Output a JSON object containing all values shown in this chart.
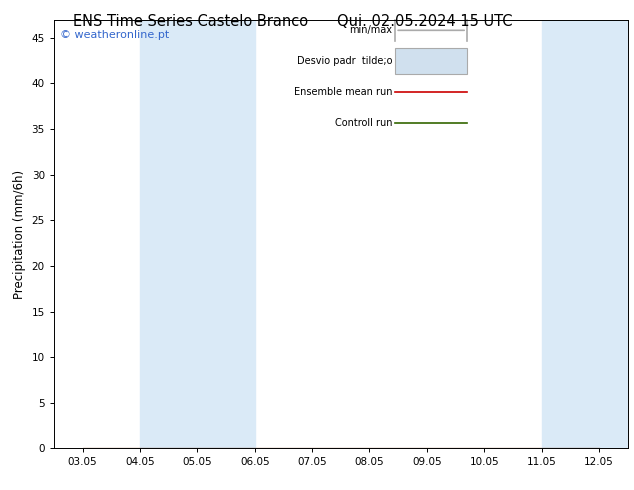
{
  "title": "ENS Time Series Castelo Branco",
  "title_right": "Qui. 02.05.2024 15 UTC",
  "ylabel": "Precipitation (mm/6h)",
  "ylim": [
    0,
    47
  ],
  "yticks": [
    0,
    5,
    10,
    15,
    20,
    25,
    30,
    35,
    40,
    45
  ],
  "xtick_labels": [
    "03.05",
    "04.05",
    "05.05",
    "06.05",
    "07.05",
    "08.05",
    "09.05",
    "10.05",
    "11.05",
    "12.05"
  ],
  "n_ticks": 10,
  "shaded_bands": [
    {
      "xmin": 1.0,
      "xmax": 3.0,
      "color": "#daeaf7"
    },
    {
      "xmin": 8.0,
      "xmax": 9.5,
      "color": "#daeaf7"
    },
    {
      "xmin": 9.5,
      "xmax": 9.9,
      "color": "#daeaf7"
    }
  ],
  "copyright_text": "© weatheronline.pt",
  "copyright_color": "#3366cc",
  "background_color": "#ffffff",
  "plot_bg_color": "#ffffff",
  "legend_entries": [
    {
      "label": "min/max",
      "type": "hbar"
    },
    {
      "label": "Desvio padr  tilde;o",
      "type": "box"
    },
    {
      "label": "Ensemble mean run",
      "color": "#cc0000",
      "type": "line"
    },
    {
      "label": "Controll run",
      "color": "#336600",
      "type": "line"
    }
  ],
  "data_x": [
    0,
    1,
    2,
    3,
    4,
    5,
    6,
    7,
    8,
    9
  ],
  "data_zero": [
    0,
    0,
    0,
    0,
    0,
    0,
    0,
    0,
    0,
    0
  ],
  "ensemble_color": "#cc0000",
  "control_color": "#336600",
  "band_color": "#daeaf7",
  "legend_hbar_color": "#aaaaaa",
  "legend_box_color": "#d0e0ee",
  "legend_box_edge": "#aaaaaa"
}
